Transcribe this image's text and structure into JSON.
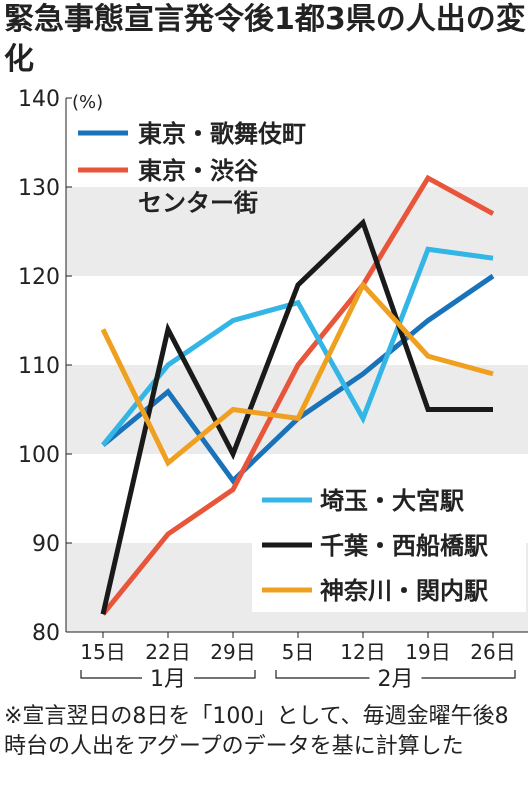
{
  "title": "緊急事態宣言発令後1都3県の人出の変化",
  "note": "※宣言翌日の8日を「100」として、毎週金曜午後8時台の人出をアグープのデータを基に計算した",
  "colors": {
    "band": "#ebebeb",
    "grid_line": "#cccccc",
    "axis": "#222222"
  },
  "chart_data": {
    "type": "line",
    "ylabel": "(%)",
    "ylim": [
      80,
      140
    ],
    "yticks": [
      80,
      90,
      100,
      110,
      120,
      130,
      140
    ],
    "categories": [
      "15日",
      "22日",
      "29日",
      "5日",
      "12日",
      "19日",
      "26日"
    ],
    "month_groups": [
      {
        "label": "1月",
        "from": 0,
        "to": 2
      },
      {
        "label": "2月",
        "from": 3,
        "to": 6
      }
    ],
    "series": [
      {
        "name": "東京・歌舞伎町",
        "color": "#1a72b8",
        "values": [
          101,
          107,
          97,
          104,
          109,
          115,
          120
        ]
      },
      {
        "name": "東京・渋谷センター街",
        "color": "#e8553a",
        "values": [
          82,
          91,
          96,
          110,
          119,
          131,
          127
        ]
      },
      {
        "name": "埼玉・大宮駅",
        "color": "#33b5e5",
        "values": [
          101,
          110,
          115,
          117,
          104,
          123,
          122
        ]
      },
      {
        "name": "千葉・西船橋駅",
        "color": "#1a1a1a",
        "values": [
          82,
          114,
          100,
          119,
          126,
          105,
          105
        ]
      },
      {
        "name": "神奈川・関内駅",
        "color": "#f0a020",
        "values": [
          114,
          99,
          105,
          104,
          119,
          111,
          109
        ]
      }
    ],
    "legend_top": [
      "東京・歌舞伎町",
      [
        "東京・渋谷",
        "センター街"
      ]
    ],
    "legend_bottom": [
      "埼玉・大宮駅",
      "千葉・西船橋駅",
      "神奈川・関内駅"
    ]
  }
}
